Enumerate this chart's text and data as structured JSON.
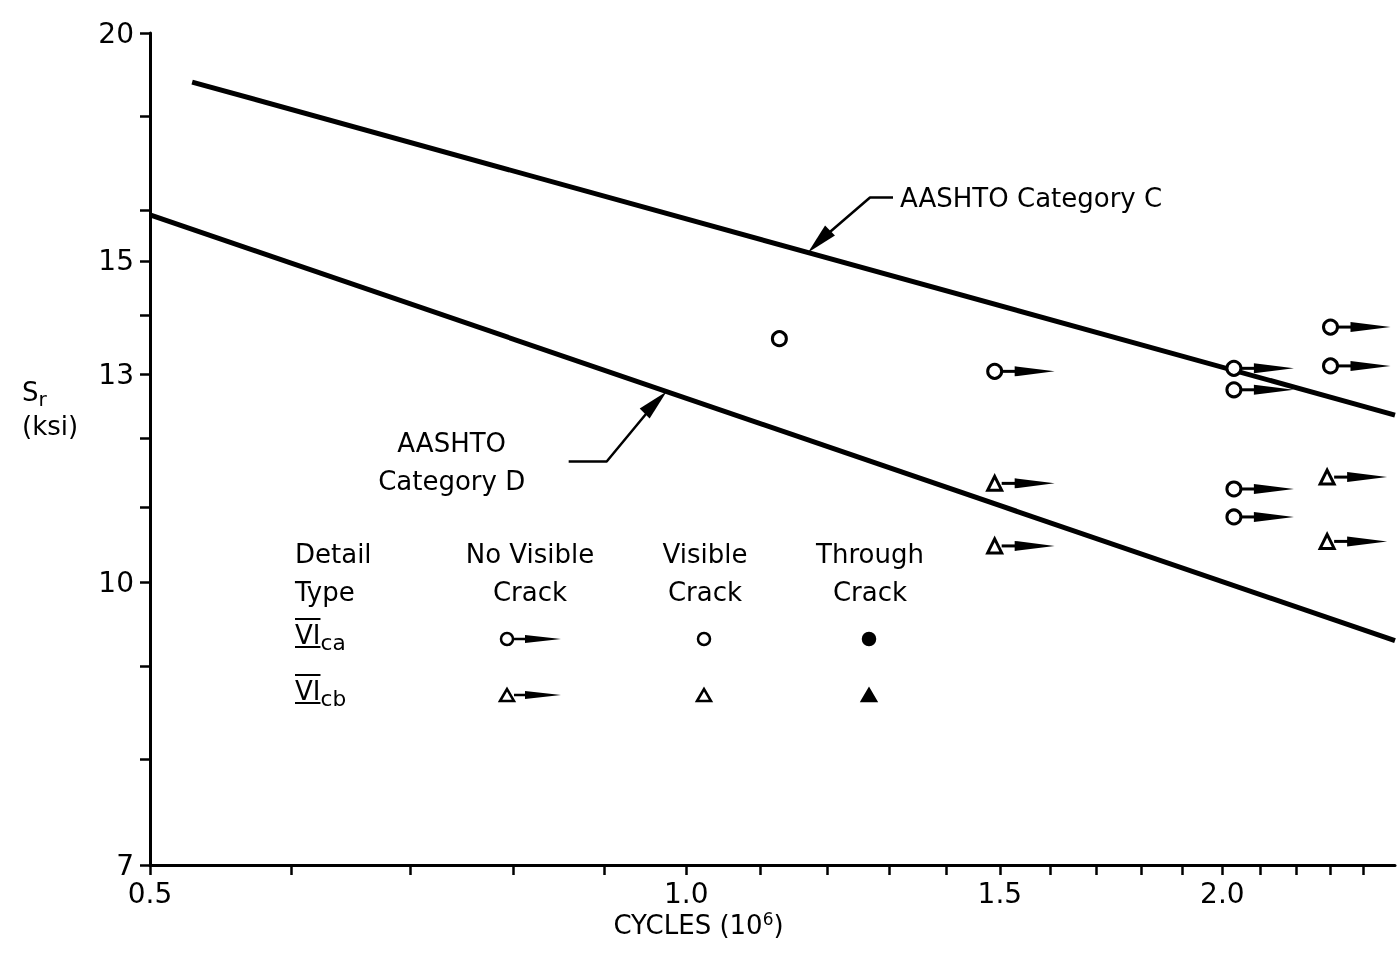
{
  "chart_data": {
    "type": "scatter",
    "xlabel": "CYCLES (10$^{6}$)",
    "ylabel": "S$_{r}$\n(ksi)",
    "log": "xy",
    "xlim": [
      0.5,
      2.5
    ],
    "ylim": [
      7,
      20
    ],
    "xticks": [
      {
        "value": 0.5,
        "label": "0.5"
      },
      {
        "value": 0.6,
        "label": null
      },
      {
        "value": 0.7,
        "label": null
      },
      {
        "value": 0.8,
        "label": null
      },
      {
        "value": 0.9,
        "label": null
      },
      {
        "value": 1,
        "label": "1.0"
      },
      {
        "value": 1.1,
        "label": null
      },
      {
        "value": 1.2,
        "label": null
      },
      {
        "value": 1.3,
        "label": null
      },
      {
        "value": 1.4,
        "label": null
      },
      {
        "value": 1.5,
        "label": "1.5"
      },
      {
        "value": 1.6,
        "label": null
      },
      {
        "value": 1.7,
        "label": null
      },
      {
        "value": 1.8,
        "label": null
      },
      {
        "value": 1.9,
        "label": null
      },
      {
        "value": 2,
        "label": "2.0"
      },
      {
        "value": 2.1,
        "label": null
      },
      {
        "value": 2.2,
        "label": null
      },
      {
        "value": 2.3,
        "label": null
      },
      {
        "value": 2.4,
        "label": null
      }
    ],
    "yticks": [
      7,
      {
        "value": 8,
        "label": null
      },
      {
        "value": 9,
        "label": null
      },
      10,
      {
        "value": 11,
        "label": null
      },
      {
        "value": 12,
        "label": null
      },
      13,
      {
        "value": 14,
        "label": null
      },
      15,
      {
        "value": 16,
        "label": null
      },
      {
        "value": 18,
        "label": null
      },
      20
    ],
    "grid": false,
    "annotations": [
      "Detail Type",
      "No Visible\nCrack",
      "Visible\nCrack",
      "Through\nCrack",
      "VI$_{ca}$",
      "VI$_{cb}$"
    ],
    "series": [
      {
        "type": "line",
        "name": "AASHTO Category C",
        "color": "#000000",
        "x": [
          0.528,
          2.5
        ],
        "values": [
          18.8,
          12.35
        ]
      },
      {
        "type": "line",
        "name": "AASHTO\nCategory D",
        "color": "#000000",
        "x": [
          0.5,
          2.5
        ],
        "values": [
          15.9,
          9.29
        ]
      },
      {
        "marker": "circle",
        "color": "#000000",
        "x": [
          1.49,
          2.03,
          2.03,
          2.03,
          2.03,
          2.3,
          2.3
        ],
        "values": [
          13.05,
          13.1,
          12.75,
          11.25,
          10.86,
          13.8,
          13.14
        ]
      },
      {
        "marker": "triangle",
        "color": "#000000",
        "x": [
          1.49,
          1.49,
          2.29,
          2.29
        ],
        "values": [
          11.33,
          10.47,
          11.42,
          10.53
        ]
      },
      {
        "marker": "circle",
        "color": "#000000",
        "x": [
          1.128
        ],
        "values": [
          13.6
        ]
      }
    ]
  }
}
